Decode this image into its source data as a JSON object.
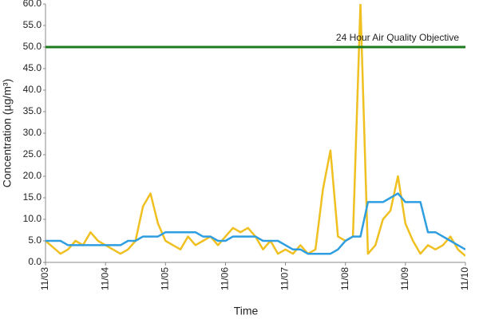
{
  "chart_data": {
    "type": "line",
    "ylabel": "Concentration (µg/m³)",
    "xlabel": "Time",
    "x": [
      0,
      0.125,
      0.25,
      0.375,
      0.5,
      0.625,
      0.75,
      0.875,
      1,
      1.125,
      1.25,
      1.375,
      1.5,
      1.625,
      1.75,
      1.875,
      2,
      2.125,
      2.25,
      2.375,
      2.5,
      2.625,
      2.75,
      2.875,
      3,
      3.125,
      3.25,
      3.375,
      3.5,
      3.625,
      3.75,
      3.875,
      4,
      4.125,
      4.25,
      4.375,
      4.5,
      4.625,
      4.75,
      4.875,
      5,
      5.125,
      5.25,
      5.375,
      5.5,
      5.625,
      5.75,
      5.875,
      6,
      6.125,
      6.25,
      6.375,
      6.5,
      6.625,
      6.75,
      6.875,
      7
    ],
    "series": [
      {
        "color": "#f0c020",
        "values": [
          5,
          3.5,
          2,
          3,
          5,
          4,
          7,
          5,
          4,
          3,
          2,
          3,
          5,
          13,
          16,
          9,
          5,
          4,
          3,
          6,
          4,
          5,
          6,
          4,
          6,
          8,
          7,
          8,
          6,
          3,
          5,
          2,
          3,
          2,
          4,
          2,
          3,
          17,
          26,
          6,
          5,
          6,
          60,
          2,
          4,
          10,
          12,
          20,
          9,
          5,
          2,
          4,
          3,
          4,
          6,
          3,
          1.5
        ]
      },
      {
        "color": "#2e9ee0",
        "values": [
          5,
          5,
          5,
          4,
          4,
          4,
          4,
          4,
          4,
          4,
          4,
          5,
          5,
          6,
          6,
          6,
          7,
          7,
          7,
          7,
          7,
          6,
          6,
          5,
          5,
          6,
          6,
          6,
          6,
          5,
          5,
          5,
          4,
          3,
          3,
          2,
          2,
          2,
          2,
          3,
          5,
          6,
          6,
          14,
          14,
          14,
          15,
          16,
          14,
          14,
          14,
          7,
          7,
          6,
          5,
          4,
          3
        ]
      }
    ],
    "threshold": {
      "value": 50,
      "color": "#1e7b1e",
      "label": "24 Hour Air Quality Objective"
    },
    "xlim": [
      0,
      7
    ],
    "xticks": [
      {
        "value": 0,
        "label": "11/03"
      },
      {
        "value": 1,
        "label": "11/04"
      },
      {
        "value": 2,
        "label": "11/05"
      },
      {
        "value": 3,
        "label": "11/06"
      },
      {
        "value": 4,
        "label": "11/07"
      },
      {
        "value": 5,
        "label": "11/08"
      },
      {
        "value": 6,
        "label": "11/09"
      },
      {
        "value": 7,
        "label": "11/10"
      }
    ],
    "ylim": [
      0,
      60
    ],
    "yticks": [
      {
        "value": 0,
        "label": "0.0"
      },
      {
        "value": 5,
        "label": "5.0"
      },
      {
        "value": 10,
        "label": "10.0"
      },
      {
        "value": 15,
        "label": "15.0"
      },
      {
        "value": 20,
        "label": "20.0"
      },
      {
        "value": 25,
        "label": "25.0"
      },
      {
        "value": 30,
        "label": "30.0"
      },
      {
        "value": 35,
        "label": "35.0"
      },
      {
        "value": 40,
        "label": "40.0"
      },
      {
        "value": 45,
        "label": "45.0"
      },
      {
        "value": 50,
        "label": "50.0"
      },
      {
        "value": 55,
        "label": "55.0"
      },
      {
        "value": 60,
        "label": "60.0"
      }
    ],
    "grid": false
  }
}
